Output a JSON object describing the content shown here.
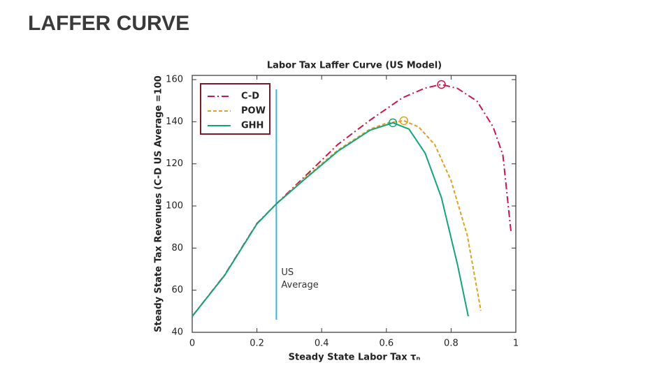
{
  "heading": "LAFFER CURVE",
  "chart_data": {
    "type": "line",
    "title": "Labor Tax Laffer Curve (US Model)",
    "x_label": "Steady State Labor Tax τₙ",
    "y_label": "Steady State Tax Revenues (C-D US Average =100",
    "xlim": [
      0,
      1
    ],
    "xticks": [
      0,
      0.2,
      0.4,
      0.6,
      0.8,
      1
    ],
    "ylim": [
      40,
      162
    ],
    "yticks": [
      40,
      60,
      80,
      100,
      120,
      140,
      160
    ],
    "legend": "upper left",
    "series": [
      {
        "name": "C-D",
        "color": "#c8174a",
        "dash": "dashdot",
        "x": [
          0,
          0.1,
          0.2,
          0.26,
          0.35,
          0.45,
          0.55,
          0.65,
          0.72,
          0.77,
          0.82,
          0.88,
          0.93,
          0.96,
          0.985
        ],
        "values": [
          47.6,
          67.2,
          91.7,
          101,
          114.3,
          129.2,
          140.8,
          151.4,
          156,
          157.7,
          155.8,
          149.8,
          137.5,
          124.2,
          87.8
        ]
      },
      {
        "name": "POW",
        "color": "#e0a020",
        "dash": "dashed",
        "x": [
          0,
          0.1,
          0.2,
          0.26,
          0.35,
          0.45,
          0.55,
          0.6,
          0.654,
          0.7,
          0.75,
          0.8,
          0.85,
          0.892
        ],
        "values": [
          47.6,
          67,
          91.5,
          101,
          113.5,
          126.5,
          136.5,
          139.3,
          140.5,
          137.5,
          129,
          112,
          86,
          50.3
        ]
      },
      {
        "name": "GHH",
        "color": "#14a37a",
        "dash": "solid",
        "x": [
          0,
          0.1,
          0.2,
          0.26,
          0.35,
          0.45,
          0.55,
          0.62,
          0.67,
          0.72,
          0.77,
          0.82,
          0.853
        ],
        "values": [
          47.6,
          67,
          91.5,
          101,
          113,
          126,
          136,
          139.5,
          136.5,
          125,
          104,
          72,
          47.6
        ]
      }
    ],
    "annotations": [
      {
        "text": "US Average",
        "x": 0.26,
        "color": "#3bb6d0"
      }
    ]
  }
}
